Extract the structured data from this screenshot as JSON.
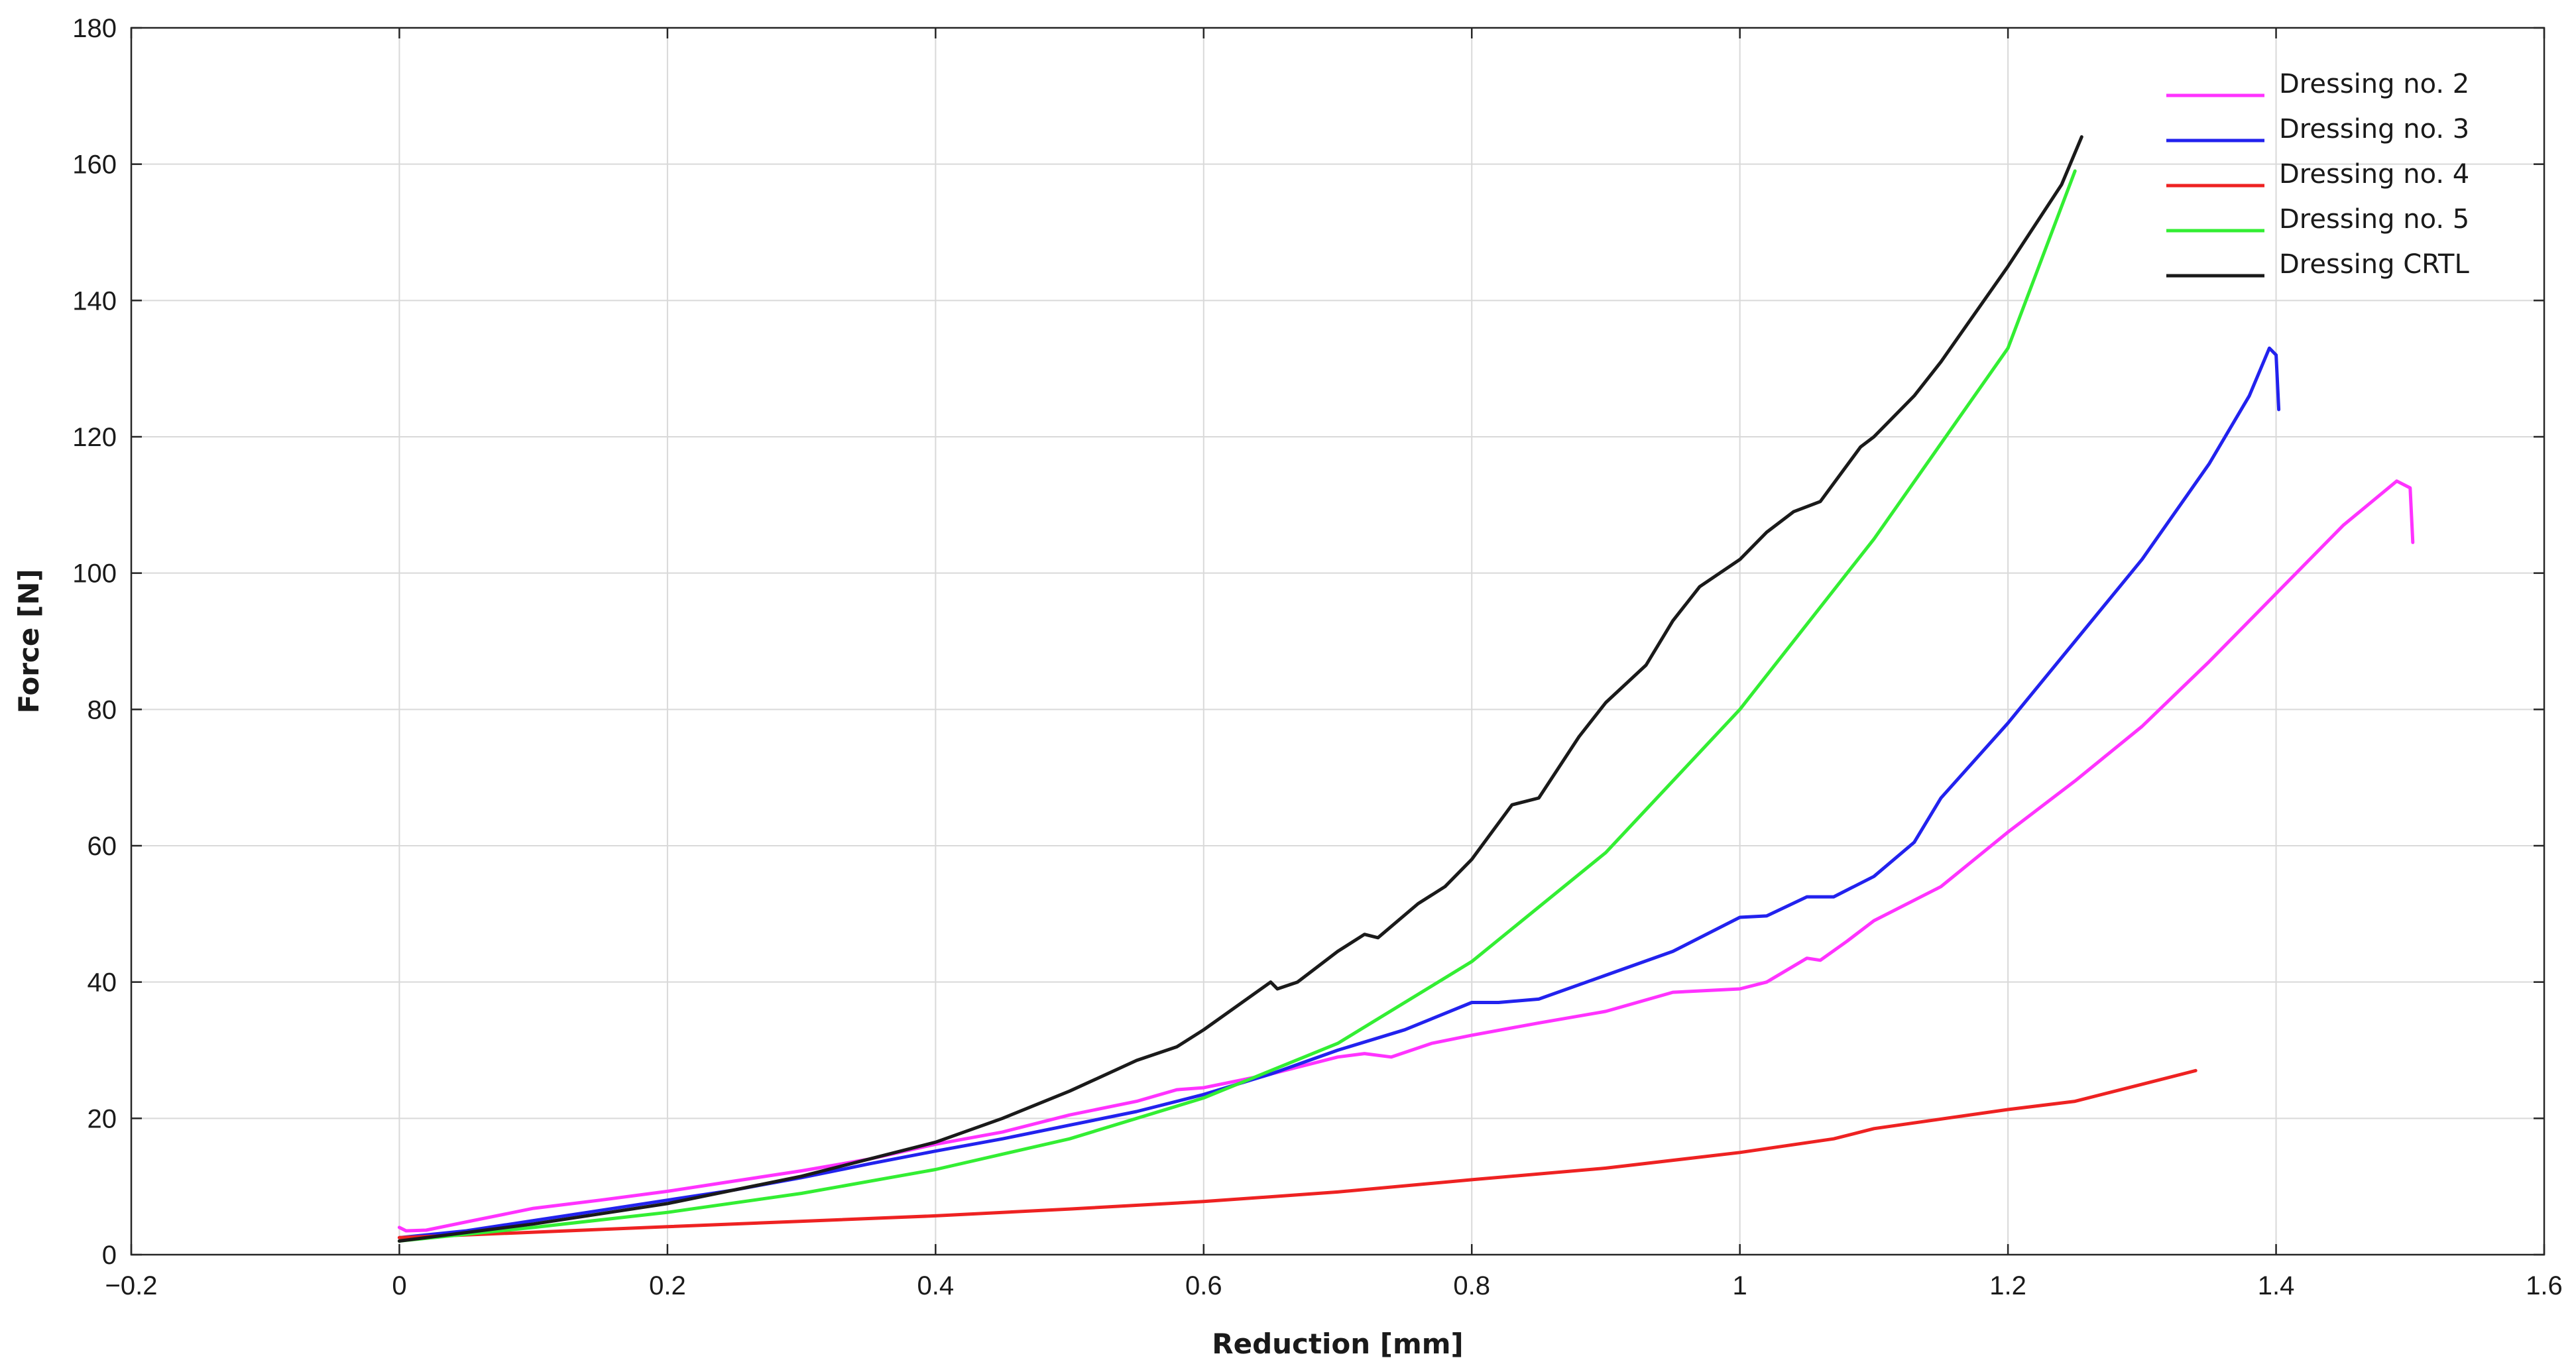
{
  "chart_data": {
    "type": "line",
    "title": "",
    "xlabel": "Reduction [mm]",
    "ylabel": "Force [N]",
    "xlim": [
      -0.2,
      1.6
    ],
    "ylim": [
      0,
      180
    ],
    "x_ticks": [
      -0.2,
      0,
      0.2,
      0.4,
      0.6,
      0.8,
      1,
      1.2,
      1.4,
      1.6
    ],
    "x_tick_labels": [
      "−0.2",
      "0",
      "0.2",
      "0.4",
      "0.6",
      "0.8",
      "1",
      "1.2",
      "1.4",
      "1.6"
    ],
    "y_ticks": [
      0,
      20,
      40,
      60,
      80,
      100,
      120,
      140,
      160,
      180
    ],
    "y_tick_labels": [
      "0",
      "20",
      "40",
      "60",
      "80",
      "100",
      "120",
      "140",
      "160",
      "180"
    ],
    "grid": true,
    "legend_position": "top-right",
    "series": [
      {
        "name": "Dressing no. 2",
        "color": "#ff33ff",
        "points": [
          [
            0,
            4
          ],
          [
            0.005,
            3.5
          ],
          [
            0.02,
            3.6
          ],
          [
            0.05,
            4.8
          ],
          [
            0.1,
            6.8
          ],
          [
            0.15,
            8
          ],
          [
            0.2,
            9.3
          ],
          [
            0.25,
            10.8
          ],
          [
            0.3,
            12.3
          ],
          [
            0.35,
            14
          ],
          [
            0.4,
            16.2
          ],
          [
            0.45,
            18
          ],
          [
            0.5,
            20.5
          ],
          [
            0.55,
            22.5
          ],
          [
            0.58,
            24.2
          ],
          [
            0.6,
            24.5
          ],
          [
            0.65,
            26.5
          ],
          [
            0.7,
            29
          ],
          [
            0.72,
            29.5
          ],
          [
            0.74,
            29
          ],
          [
            0.77,
            31
          ],
          [
            0.8,
            32.2
          ],
          [
            0.85,
            34
          ],
          [
            0.9,
            35.7
          ],
          [
            0.95,
            38.5
          ],
          [
            1.0,
            39
          ],
          [
            1.02,
            40
          ],
          [
            1.05,
            43.5
          ],
          [
            1.06,
            43.2
          ],
          [
            1.08,
            46
          ],
          [
            1.1,
            49
          ],
          [
            1.15,
            54
          ],
          [
            1.2,
            62
          ],
          [
            1.25,
            69.5
          ],
          [
            1.3,
            77.5
          ],
          [
            1.35,
            87
          ],
          [
            1.4,
            97
          ],
          [
            1.45,
            107
          ],
          [
            1.49,
            113.5
          ],
          [
            1.5,
            112.5
          ],
          [
            1.502,
            104.5
          ]
        ]
      },
      {
        "name": "Dressing no. 3",
        "color": "#2222ee",
        "points": [
          [
            0,
            2.5
          ],
          [
            0.05,
            3.5
          ],
          [
            0.1,
            5
          ],
          [
            0.15,
            6.5
          ],
          [
            0.2,
            8
          ],
          [
            0.25,
            9.5
          ],
          [
            0.3,
            11.3
          ],
          [
            0.35,
            13.3
          ],
          [
            0.4,
            15.2
          ],
          [
            0.45,
            17
          ],
          [
            0.5,
            19
          ],
          [
            0.55,
            21
          ],
          [
            0.6,
            23.5
          ],
          [
            0.65,
            26.5
          ],
          [
            0.7,
            30
          ],
          [
            0.75,
            33
          ],
          [
            0.8,
            37
          ],
          [
            0.82,
            37
          ],
          [
            0.85,
            37.5
          ],
          [
            0.9,
            41
          ],
          [
            0.95,
            44.5
          ],
          [
            1.0,
            49.5
          ],
          [
            1.02,
            49.7
          ],
          [
            1.05,
            52.5
          ],
          [
            1.07,
            52.5
          ],
          [
            1.1,
            55.5
          ],
          [
            1.13,
            60.5
          ],
          [
            1.15,
            67
          ],
          [
            1.2,
            78
          ],
          [
            1.25,
            90
          ],
          [
            1.3,
            102
          ],
          [
            1.35,
            116
          ],
          [
            1.38,
            126
          ],
          [
            1.395,
            133
          ],
          [
            1.4,
            132
          ],
          [
            1.402,
            124
          ]
        ]
      },
      {
        "name": "Dressing no. 4",
        "color": "#ee2222",
        "points": [
          [
            0,
            2.5
          ],
          [
            0.1,
            3.3
          ],
          [
            0.2,
            4.1
          ],
          [
            0.3,
            4.9
          ],
          [
            0.4,
            5.7
          ],
          [
            0.5,
            6.7
          ],
          [
            0.6,
            7.8
          ],
          [
            0.7,
            9.2
          ],
          [
            0.8,
            11
          ],
          [
            0.9,
            12.7
          ],
          [
            1.0,
            15
          ],
          [
            1.07,
            17
          ],
          [
            1.1,
            18.5
          ],
          [
            1.2,
            21.3
          ],
          [
            1.25,
            22.5
          ],
          [
            1.3,
            25
          ],
          [
            1.34,
            27
          ]
        ]
      },
      {
        "name": "Dressing no. 5",
        "color": "#33ee33",
        "points": [
          [
            0,
            2
          ],
          [
            0.1,
            4
          ],
          [
            0.2,
            6.2
          ],
          [
            0.3,
            9
          ],
          [
            0.4,
            12.5
          ],
          [
            0.5,
            17
          ],
          [
            0.6,
            23
          ],
          [
            0.7,
            31
          ],
          [
            0.8,
            43
          ],
          [
            0.9,
            59
          ],
          [
            1.0,
            80
          ],
          [
            1.1,
            105
          ],
          [
            1.2,
            133
          ],
          [
            1.25,
            159
          ]
        ]
      },
      {
        "name": "Dressing CRTL",
        "color": "#1a1a1a",
        "points": [
          [
            0,
            2
          ],
          [
            0.1,
            4.5
          ],
          [
            0.2,
            7.5
          ],
          [
            0.3,
            11.5
          ],
          [
            0.4,
            16.5
          ],
          [
            0.45,
            20
          ],
          [
            0.5,
            24
          ],
          [
            0.55,
            28.5
          ],
          [
            0.58,
            30.5
          ],
          [
            0.6,
            33
          ],
          [
            0.65,
            40
          ],
          [
            0.655,
            39
          ],
          [
            0.67,
            40
          ],
          [
            0.7,
            44.5
          ],
          [
            0.72,
            47
          ],
          [
            0.73,
            46.5
          ],
          [
            0.76,
            51.5
          ],
          [
            0.78,
            54
          ],
          [
            0.8,
            58
          ],
          [
            0.83,
            66
          ],
          [
            0.85,
            67
          ],
          [
            0.88,
            76
          ],
          [
            0.9,
            81
          ],
          [
            0.93,
            86.5
          ],
          [
            0.95,
            93
          ],
          [
            0.97,
            98
          ],
          [
            1.0,
            102
          ],
          [
            1.02,
            106
          ],
          [
            1.04,
            109
          ],
          [
            1.06,
            110.5
          ],
          [
            1.09,
            118.5
          ],
          [
            1.1,
            120
          ],
          [
            1.13,
            126
          ],
          [
            1.15,
            131
          ],
          [
            1.2,
            145
          ],
          [
            1.24,
            157
          ],
          [
            1.255,
            164
          ]
        ]
      }
    ]
  }
}
